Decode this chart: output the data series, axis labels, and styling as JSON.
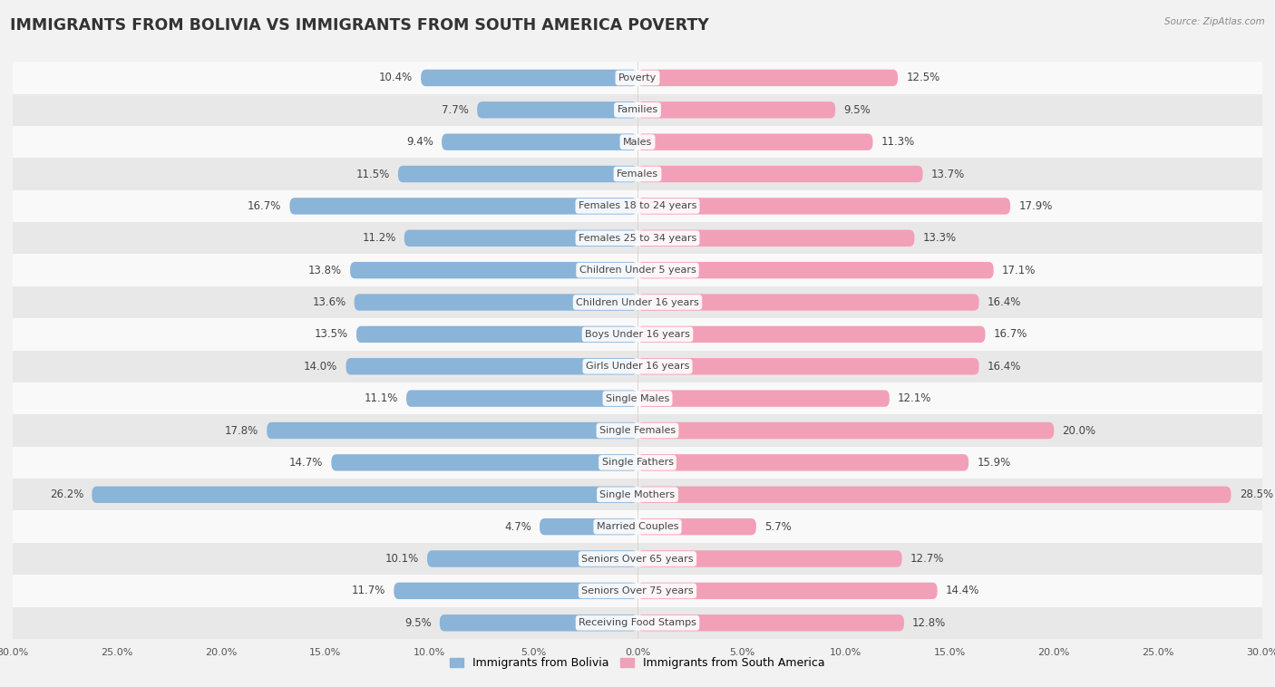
{
  "title": "IMMIGRANTS FROM BOLIVIA VS IMMIGRANTS FROM SOUTH AMERICA POVERTY",
  "source": "Source: ZipAtlas.com",
  "categories": [
    "Poverty",
    "Families",
    "Males",
    "Females",
    "Females 18 to 24 years",
    "Females 25 to 34 years",
    "Children Under 5 years",
    "Children Under 16 years",
    "Boys Under 16 years",
    "Girls Under 16 years",
    "Single Males",
    "Single Females",
    "Single Fathers",
    "Single Mothers",
    "Married Couples",
    "Seniors Over 65 years",
    "Seniors Over 75 years",
    "Receiving Food Stamps"
  ],
  "bolivia_values": [
    10.4,
    7.7,
    9.4,
    11.5,
    16.7,
    11.2,
    13.8,
    13.6,
    13.5,
    14.0,
    11.1,
    17.8,
    14.7,
    26.2,
    4.7,
    10.1,
    11.7,
    9.5
  ],
  "south_america_values": [
    12.5,
    9.5,
    11.3,
    13.7,
    17.9,
    13.3,
    17.1,
    16.4,
    16.7,
    16.4,
    12.1,
    20.0,
    15.9,
    28.5,
    5.7,
    12.7,
    14.4,
    12.8
  ],
  "bolivia_color": "#8ab4d8",
  "south_america_color": "#f2a0b8",
  "bolivia_highlight_color": "#5b9dc8",
  "south_america_highlight_color": "#e8607a",
  "bar_height": 0.52,
  "bg_color": "#f2f2f2",
  "row_color_odd": "#f9f9f9",
  "row_color_even": "#e8e8e8",
  "xlim": 30.0,
  "label_fontsize": 8.5,
  "category_fontsize": 8.0,
  "title_fontsize": 12.5,
  "xlabel_fontsize": 8
}
